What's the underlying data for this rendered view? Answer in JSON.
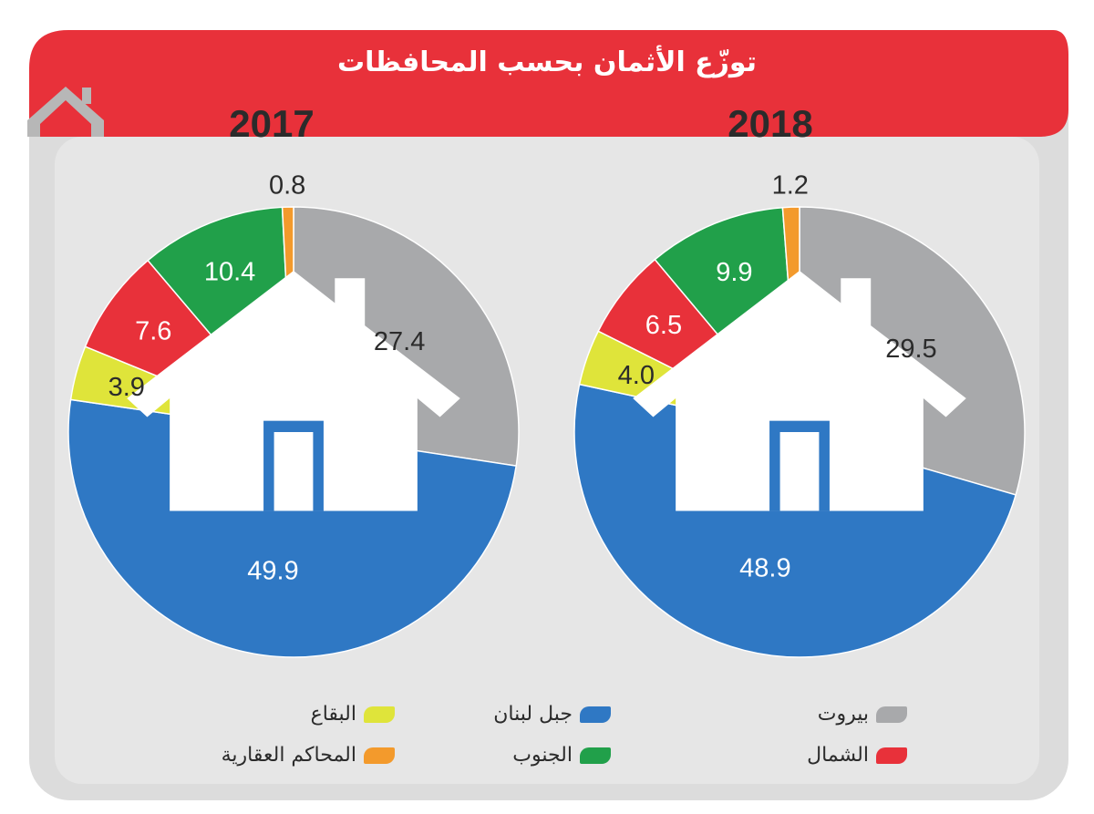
{
  "title": "توزّع الأثمان بحسب المحافظات",
  "colors": {
    "banner": "#e8313a",
    "panel": "#dedede",
    "beirut": "#a8a9ab",
    "mount_lebanon": "#2f78c4",
    "bekaa": "#dfe43a",
    "north": "#e8313a",
    "south": "#21a04a",
    "courts": "#f39a2c"
  },
  "legend": [
    {
      "key": "beirut",
      "label": "بيروت"
    },
    {
      "key": "mount_lebanon",
      "label": "جبل لبنان"
    },
    {
      "key": "bekaa",
      "label": "البقاع"
    },
    {
      "key": "north",
      "label": "الشمال"
    },
    {
      "key": "south",
      "label": "الجنوب"
    },
    {
      "key": "courts",
      "label": "المحاكم العقارية"
    }
  ],
  "chart_data": [
    {
      "type": "pie",
      "title": "2018",
      "categories": [
        "بيروت",
        "جبل لبنان",
        "البقاع",
        "الشمال",
        "الجنوب",
        "المحاكم العقارية"
      ],
      "values": [
        29.5,
        48.9,
        4.0,
        6.5,
        9.9,
        1.2
      ],
      "labels": [
        "29.5",
        "48.9",
        "4.0",
        "6.5",
        "9.9",
        "1.2"
      ]
    },
    {
      "type": "pie",
      "title": "2017",
      "categories": [
        "بيروت",
        "جبل لبنان",
        "البقاع",
        "الشمال",
        "الجنوب",
        "المحاكم العقارية"
      ],
      "values": [
        27.4,
        49.9,
        3.9,
        7.6,
        10.4,
        0.8
      ],
      "labels": [
        "27.4",
        "49.9",
        "3.9",
        "7.6",
        "10.4",
        "0.8"
      ]
    }
  ]
}
